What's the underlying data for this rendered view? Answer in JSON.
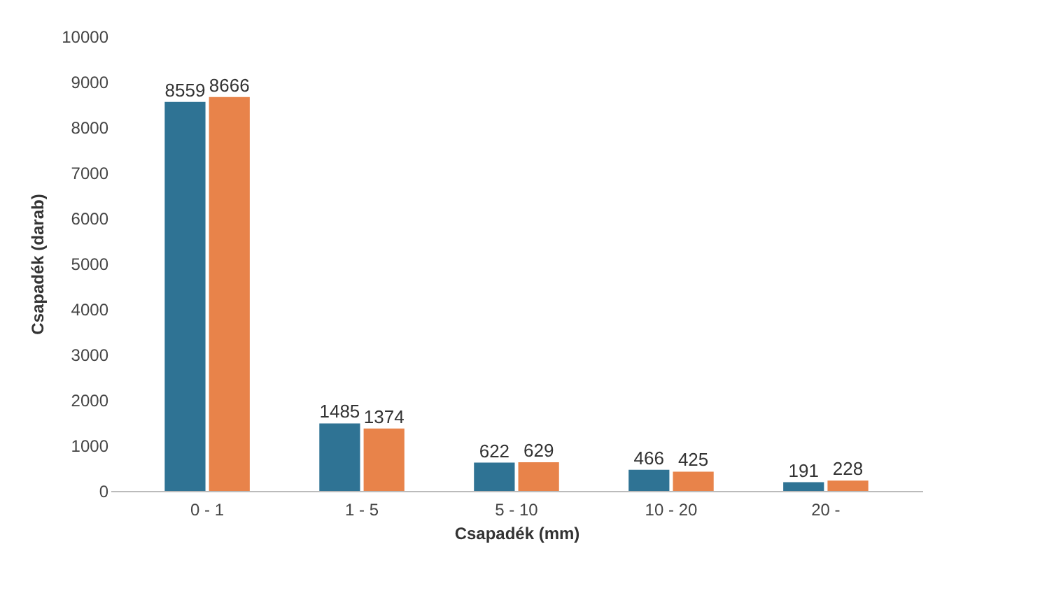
{
  "chart_data": {
    "type": "bar",
    "xlabel": "Csapadék (mm)",
    "ylabel": "Csapadék (darab)",
    "categories": [
      "0 - 1",
      "1 - 5",
      "5 - 10",
      "10 - 20",
      "20 -"
    ],
    "series": [
      {
        "color": "#2f7394",
        "values": [
          8559,
          1485,
          622,
          466,
          191
        ]
      },
      {
        "color": "#e8834a",
        "values": [
          8666,
          1374,
          629,
          425,
          228
        ]
      }
    ],
    "ylim": [
      0,
      10000
    ],
    "yticks": [
      0,
      1000,
      2000,
      3000,
      4000,
      5000,
      6000,
      7000,
      8000,
      9000,
      10000
    ],
    "grid": false,
    "data_labels": true
  }
}
